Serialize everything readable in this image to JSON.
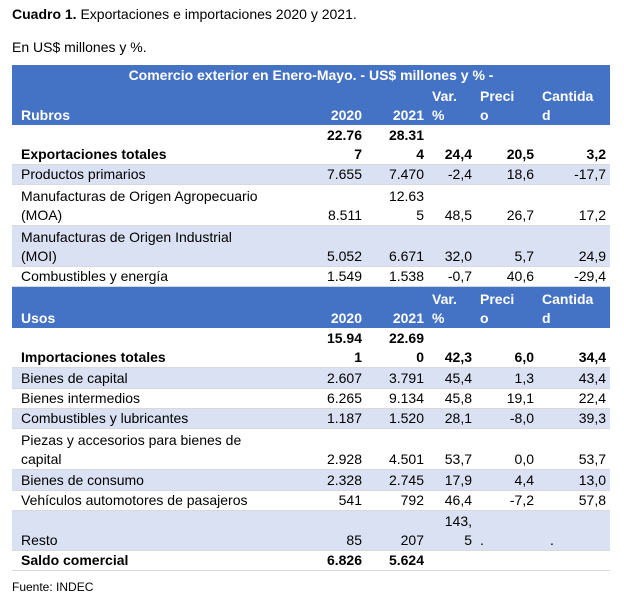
{
  "caption": {
    "label": "Cuadro 1.",
    "text": " Exportaciones e importaciones 2020 y 2021."
  },
  "subtitle": "En US$ millones y %.",
  "table": {
    "title": "Comercio exterior en Enero-Mayo. - US$ millones y % -",
    "export_header": {
      "rubros": "Rubros",
      "y2020": "2020",
      "y2021": "2021",
      "var": "Var.\n%",
      "precio": "Preci\no",
      "cantidad": "Cantida\nd"
    },
    "export_total": {
      "label": "Exportaciones totales",
      "y2020": "22.76\n7",
      "y2021": "28.31\n4",
      "var": "24,4",
      "precio": "20,5",
      "cantidad": "3,2"
    },
    "export_rows": [
      {
        "label": "Productos primarios",
        "y2020": "7.655",
        "y2021": "7.470",
        "var": "-2,4",
        "precio": "18,6",
        "cantidad": "-17,7"
      },
      {
        "label": "Manufacturas de Origen Agropecuario\n(MOA)",
        "y2020": "8.511",
        "y2021": "12.63\n5",
        "var": "48,5",
        "precio": "26,7",
        "cantidad": "17,2"
      },
      {
        "label": "Manufacturas de Origen Industrial\n(MOI)",
        "y2020": "5.052",
        "y2021": "6.671",
        "var": "32,0",
        "precio": "5,7",
        "cantidad": "24,9"
      },
      {
        "label": "Combustibles y energía",
        "y2020": "1.549",
        "y2021": "1.538",
        "var": "-0,7",
        "precio": "40,6",
        "cantidad": "-29,4"
      }
    ],
    "import_header": {
      "usos": "Usos",
      "y2020": "2020",
      "y2021": "2021",
      "var": "Var.\n%",
      "precio": "Preci\no",
      "cantidad": "Cantida\nd"
    },
    "import_total": {
      "label": "Importaciones totales",
      "y2020": "15.94\n1",
      "y2021": "22.69\n0",
      "var": "42,3",
      "precio": "6,0",
      "cantidad": "34,4"
    },
    "import_rows": [
      {
        "label": "Bienes de capital",
        "y2020": "2.607",
        "y2021": "3.791",
        "var": "45,4",
        "precio": "1,3",
        "cantidad": "43,4"
      },
      {
        "label": "Bienes intermedios",
        "y2020": "6.265",
        "y2021": "9.134",
        "var": "45,8",
        "precio": "19,1",
        "cantidad": "22,4"
      },
      {
        "label": "Combustibles y lubricantes",
        "y2020": "1.187",
        "y2021": "1.520",
        "var": "28,1",
        "precio": "-8,0",
        "cantidad": "39,3"
      },
      {
        "label": "Piezas y accesorios para bienes de\ncapital",
        "y2020": "2.928",
        "y2021": "4.501",
        "var": "53,7",
        "precio": "0,0",
        "cantidad": "53,7"
      },
      {
        "label": "Bienes de consumo",
        "y2020": "2.328",
        "y2021": "2.745",
        "var": "17,9",
        "precio": "4,4",
        "cantidad": "13,0"
      },
      {
        "label": "Vehículos automotores de pasajeros",
        "y2020": "541",
        "y2021": "792",
        "var": "46,4",
        "precio": "-7,2",
        "cantidad": "57,8"
      },
      {
        "label": "Resto",
        "y2020": "85",
        "y2021": "207",
        "var": "143,\n5",
        "precio": ".",
        "cantidad": "."
      }
    ],
    "balance": {
      "label": "Saldo comercial",
      "y2020": "6.826",
      "y2021": "5.624"
    }
  },
  "footer": "Fuente: INDEC"
}
